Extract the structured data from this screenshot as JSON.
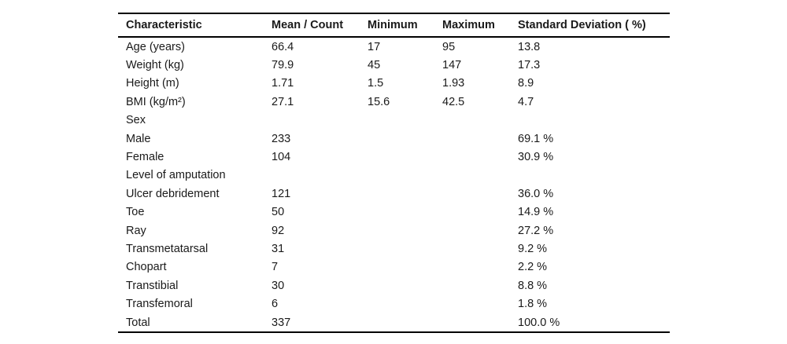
{
  "table": {
    "headers": [
      "Characteristic",
      "Mean / Count",
      "Minimum",
      "Maximum",
      "Standard Deviation ( %)"
    ],
    "rows": [
      {
        "cells": [
          "Age (years)",
          "66.4",
          "17",
          "95",
          "13.8"
        ]
      },
      {
        "cells": [
          "Weight (kg)",
          "79.9",
          "45",
          "147",
          "17.3"
        ]
      },
      {
        "cells": [
          "Height (m)",
          "1.71",
          "1.5",
          "1.93",
          "8.9"
        ]
      },
      {
        "cells": [
          "BMI (kg/m²)",
          "27.1",
          "15.6",
          "42.5",
          "4.7"
        ]
      },
      {
        "cells": [
          "Sex",
          "",
          "",
          "",
          ""
        ]
      },
      {
        "cells": [
          "Male",
          "233",
          "",
          "",
          "69.1 %"
        ]
      },
      {
        "cells": [
          "Female",
          "104",
          "",
          "",
          "30.9 %"
        ]
      },
      {
        "cells": [
          "Level of amputation",
          "",
          "",
          "",
          ""
        ]
      },
      {
        "cells": [
          "Ulcer debridement",
          "121",
          "",
          "",
          "36.0 %"
        ]
      },
      {
        "cells": [
          "Toe",
          "50",
          "",
          "",
          "14.9 %"
        ]
      },
      {
        "cells": [
          "Ray",
          "92",
          "",
          "",
          "27.2 %"
        ]
      },
      {
        "cells": [
          "Transmetatarsal",
          "31",
          "",
          "",
          "9.2 %"
        ]
      },
      {
        "cells": [
          "Chopart",
          "7",
          "",
          "",
          "2.2 %"
        ]
      },
      {
        "cells": [
          "Transtibial",
          "30",
          "",
          "",
          "8.8 %"
        ]
      },
      {
        "cells": [
          "Transfemoral",
          "6",
          "",
          "",
          "1.8 %"
        ]
      },
      {
        "cells": [
          "Total",
          "337",
          "",
          "",
          "100.0 %"
        ]
      }
    ],
    "colors": {
      "background": "#ffffff",
      "text": "#1a1a1a",
      "rule": "#000000"
    }
  }
}
